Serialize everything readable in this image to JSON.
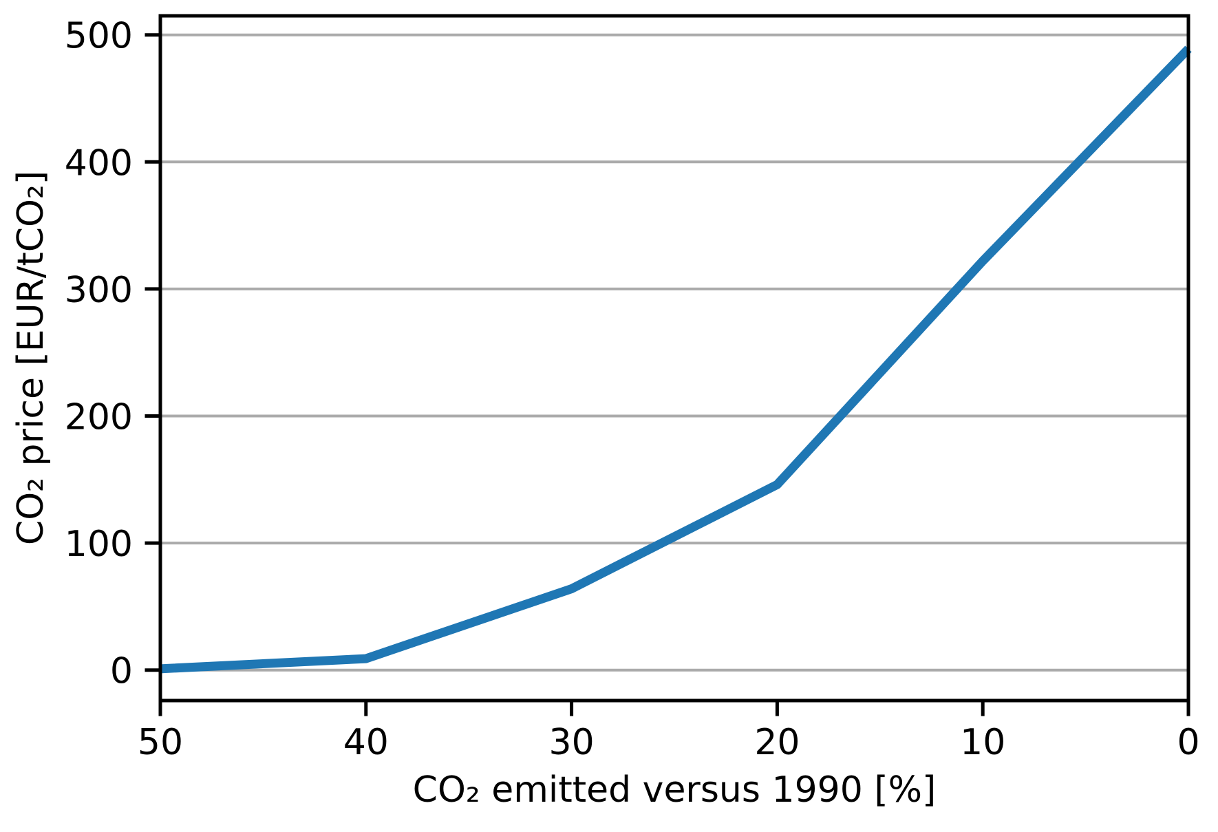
{
  "figure": {
    "background": "#ffffff"
  },
  "chart_data": {
    "type": "line",
    "title": "",
    "xlabel": "CO₂ emitted versus 1990 [%]",
    "ylabel": "CO₂ price [EUR/tCO₂]",
    "x": [
      50,
      40,
      30,
      20,
      10,
      0
    ],
    "series": [
      {
        "name": "CO2 price",
        "values": [
          1,
          9,
          64,
          146,
          322,
          489
        ]
      }
    ],
    "x_ticks": [
      50,
      40,
      30,
      20,
      10,
      0
    ],
    "y_ticks": [
      0,
      100,
      200,
      300,
      400,
      500
    ],
    "xlim": [
      50,
      0
    ],
    "ylim": [
      -24,
      515
    ],
    "x_axis_inverted": true,
    "grid": "horizontal",
    "legend": "none",
    "line_color": "#1f77b4",
    "grid_color": "#ababab",
    "spine_color": "#000000",
    "line_width": 13
  }
}
